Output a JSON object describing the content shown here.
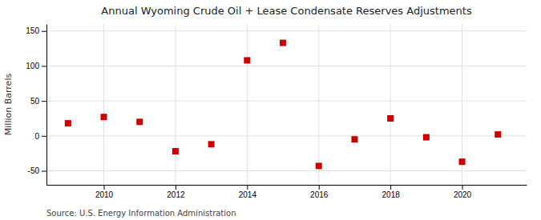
{
  "chart_data": {
    "type": "scatter",
    "title": "Annual Wyoming Crude Oil + Lease Condensate Reserves Adjustments",
    "ylabel": "Million Barrels",
    "annotation": "Source: U.S. Energy Information Administration",
    "x": [
      2009,
      2010,
      2011,
      2012,
      2013,
      2014,
      2015,
      2016,
      2017,
      2018,
      2019,
      2020,
      2021
    ],
    "values": [
      18,
      27,
      20,
      -22,
      -12,
      108,
      133,
      -43,
      -5,
      25,
      -2,
      -37,
      2
    ],
    "color": "#cc0000",
    "marker": "square",
    "xlim": [
      2008.4,
      2021.8
    ],
    "xticks": [
      2010,
      2012,
      2014,
      2016,
      2018,
      2020
    ],
    "ylim": [
      -70,
      160
    ],
    "yticks": [
      -50,
      0,
      50,
      100,
      150
    ],
    "grid": true
  }
}
